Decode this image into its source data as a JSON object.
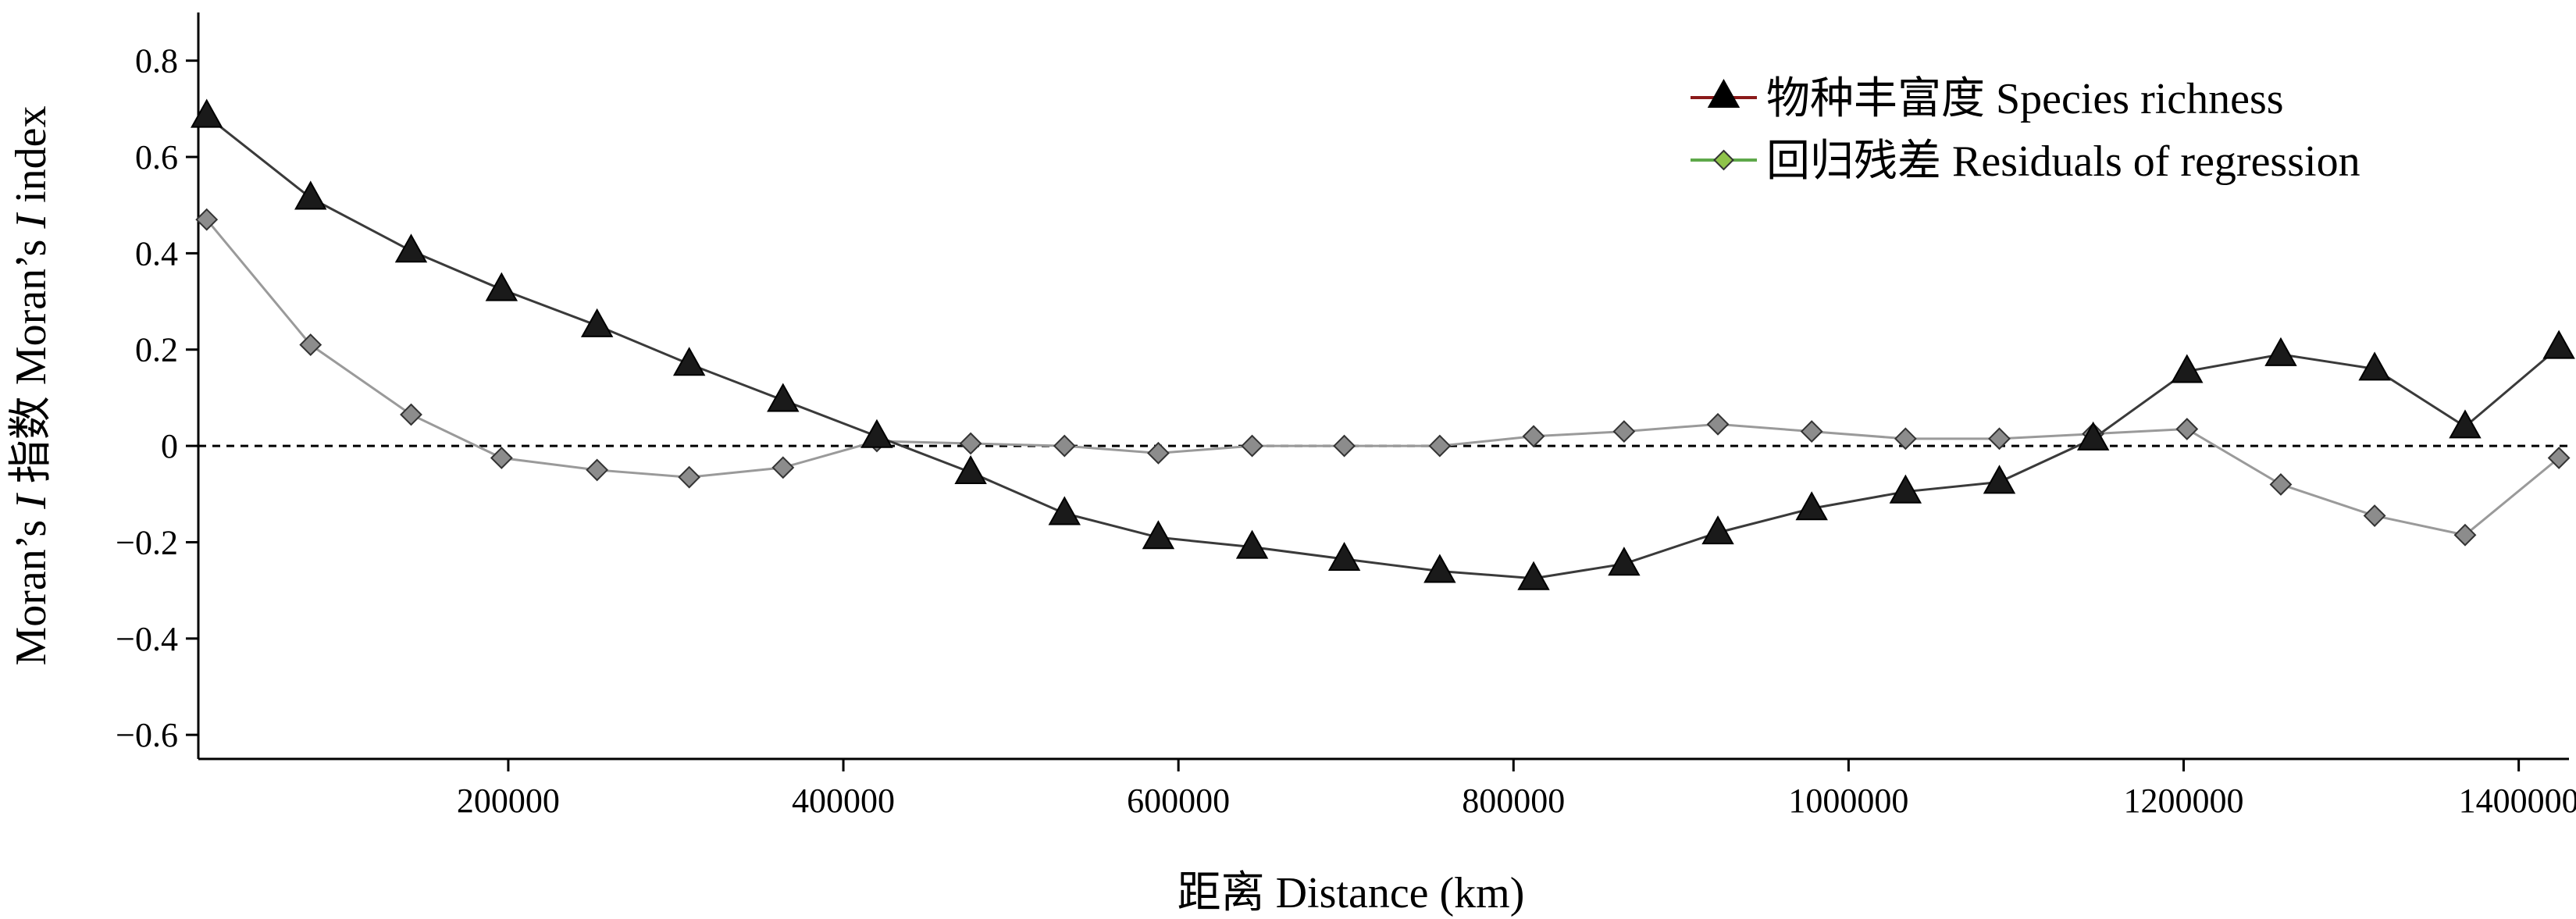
{
  "chart_data": {
    "type": "line",
    "title": "",
    "xlabel": "距离 Distance (km)",
    "ylabel": "Moran's I 指数 Moran's I index",
    "ylabel_parts": [
      "Moran’s ",
      "I",
      " 指数 Moran’s ",
      "I",
      " index"
    ],
    "xlim": [
      15000,
      1430000
    ],
    "ylim": [
      -0.65,
      0.9
    ],
    "x_ticks": [
      200000,
      400000,
      600000,
      800000,
      1000000,
      1200000,
      1400000
    ],
    "x_tick_labels": [
      "200000",
      "400000",
      "600000",
      "800000",
      "1000000",
      "1200000",
      "1400000"
    ],
    "y_ticks": [
      0.8,
      0.6,
      0.4,
      0.2,
      0,
      -0.2,
      -0.4,
      -0.6
    ],
    "y_tick_labels": [
      "0.8",
      "0.6",
      "0.4",
      "0.2",
      "0",
      "−0.2",
      "−0.4",
      "−0.6"
    ],
    "reference_line": {
      "y": 0,
      "style": "dashed"
    },
    "legend_position": "top-right",
    "grid": false,
    "x": [
      20000,
      82000,
      142000,
      196000,
      253000,
      308000,
      364000,
      420000,
      476000,
      532000,
      588000,
      644000,
      699000,
      756000,
      812000,
      866000,
      922000,
      978000,
      1034000,
      1090000,
      1146000,
      1202000,
      1258000,
      1314000,
      1368000,
      1424000
    ],
    "series": [
      {
        "name": "物种丰富度 Species richness",
        "marker": "triangle",
        "color": "#1a1a1a",
        "legend_line_color": "#8b1a1a",
        "values": [
          0.685,
          0.515,
          0.405,
          0.325,
          0.25,
          0.17,
          0.095,
          0.02,
          -0.055,
          -0.14,
          -0.19,
          -0.21,
          -0.235,
          -0.26,
          -0.275,
          -0.245,
          -0.18,
          -0.13,
          -0.095,
          -0.075,
          0.015,
          0.155,
          0.19,
          0.16,
          0.04,
          0.205
        ]
      },
      {
        "name": "回归残差 Residuals of regression",
        "marker": "diamond",
        "color": "#8c8c8c",
        "legend_line_color": "#5ea84a",
        "values": [
          0.47,
          0.21,
          0.065,
          -0.025,
          -0.05,
          -0.065,
          -0.045,
          0.01,
          0.005,
          0.0,
          -0.015,
          0.0,
          0.0,
          0.0,
          0.02,
          0.03,
          0.045,
          0.03,
          0.015,
          0.015,
          0.025,
          0.035,
          -0.08,
          -0.145,
          -0.185,
          -0.025
        ]
      }
    ]
  }
}
